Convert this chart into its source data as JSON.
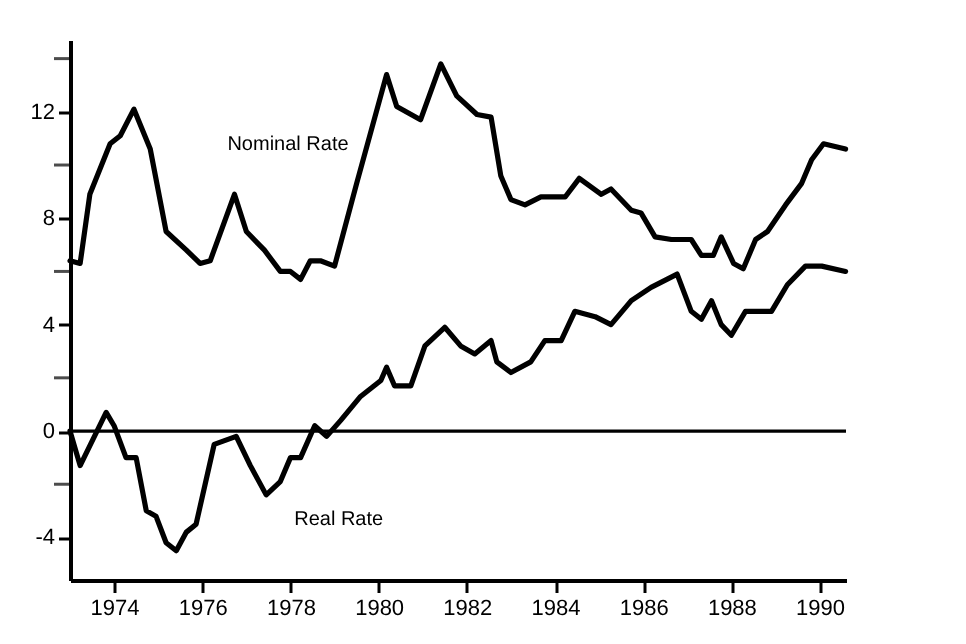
{
  "chart_data": {
    "type": "line",
    "xlim": [
      1973,
      1990.6
    ],
    "xticks": [
      1974,
      1976,
      1978,
      1980,
      1982,
      1984,
      1986,
      1988,
      1990
    ],
    "ylim": [
      -5.6,
      14.7
    ],
    "yticks": [
      {
        "value": 14,
        "label": null
      },
      12,
      {
        "value": 10,
        "label": null
      },
      8,
      {
        "value": 6,
        "label": null
      },
      4,
      {
        "value": 2,
        "label": null
      },
      0,
      {
        "value": -2,
        "label": null
      },
      -4
    ],
    "grid": false,
    "marker": "none",
    "line_style": "solid",
    "ref_lines": [
      {
        "axis": "y",
        "value": 0
      }
    ],
    "series": [
      {
        "name": "Nominal Rate",
        "color": "#000000",
        "x": [
          1973.0,
          1973.23,
          1973.45,
          1973.91,
          1974.14,
          1974.45,
          1974.82,
          1975.18,
          1975.64,
          1975.95,
          1976.18,
          1976.73,
          1977.0,
          1977.41,
          1977.77,
          1978.0,
          1978.23,
          1978.45,
          1978.68,
          1979.0,
          1979.5,
          1980.18,
          1980.41,
          1980.95,
          1981.41,
          1981.77,
          1982.23,
          1982.55,
          1982.77,
          1983.0,
          1983.32,
          1983.68,
          1984.23,
          1984.55,
          1985.05,
          1985.27,
          1985.73,
          1985.95,
          1986.27,
          1986.64,
          1987.09,
          1987.32,
          1987.59,
          1987.77,
          1988.05,
          1988.27,
          1988.55,
          1988.82,
          1989.23,
          1989.59,
          1989.82,
          1990.09,
          1990.59
        ],
        "values": [
          6.4,
          6.3,
          8.9,
          10.8,
          11.1,
          12.1,
          10.6,
          7.5,
          6.8,
          6.3,
          6.4,
          8.9,
          7.5,
          6.8,
          6.0,
          6.0,
          5.7,
          6.4,
          6.4,
          6.2,
          9.3,
          13.4,
          12.2,
          11.7,
          13.8,
          12.6,
          11.9,
          11.8,
          9.6,
          8.7,
          8.5,
          8.8,
          8.8,
          9.5,
          8.9,
          9.1,
          8.3,
          8.2,
          7.3,
          7.2,
          7.2,
          6.6,
          6.6,
          7.3,
          6.3,
          6.1,
          7.2,
          7.5,
          8.5,
          9.3,
          10.2,
          10.8,
          10.6
        ]
      },
      {
        "name": "Real Rate",
        "color": "#000000",
        "x": [
          1973.0,
          1973.23,
          1973.82,
          1974.0,
          1974.27,
          1974.5,
          1974.73,
          1974.95,
          1975.18,
          1975.41,
          1975.64,
          1975.86,
          1976.27,
          1976.77,
          1977.09,
          1977.45,
          1977.77,
          1978.0,
          1978.23,
          1978.55,
          1978.82,
          1979.14,
          1979.59,
          1980.05,
          1980.18,
          1980.36,
          1980.73,
          1981.05,
          1981.5,
          1981.86,
          1982.18,
          1982.55,
          1982.68,
          1983.0,
          1983.45,
          1983.77,
          1984.14,
          1984.45,
          1984.91,
          1985.27,
          1985.73,
          1986.18,
          1986.77,
          1987.09,
          1987.32,
          1987.55,
          1987.77,
          1988.0,
          1988.32,
          1988.91,
          1989.27,
          1989.68,
          1990.05,
          1990.59
        ],
        "values": [
          0,
          -1.3,
          0.7,
          0.2,
          -1.0,
          -1.0,
          -3.0,
          -3.2,
          -4.2,
          -4.5,
          -3.8,
          -3.5,
          -0.5,
          -0.2,
          -1.3,
          -2.4,
          -1.9,
          -1.0,
          -1.0,
          0.2,
          -0.2,
          0.4,
          1.3,
          1.9,
          2.4,
          1.7,
          1.7,
          3.2,
          3.9,
          3.2,
          2.9,
          3.4,
          2.6,
          2.2,
          2.6,
          3.4,
          3.4,
          4.5,
          4.3,
          4.0,
          4.9,
          5.4,
          5.9,
          4.5,
          4.2,
          4.9,
          4.0,
          3.6,
          4.5,
          4.5,
          5.5,
          6.2,
          6.2,
          6.0
        ]
      }
    ]
  }
}
